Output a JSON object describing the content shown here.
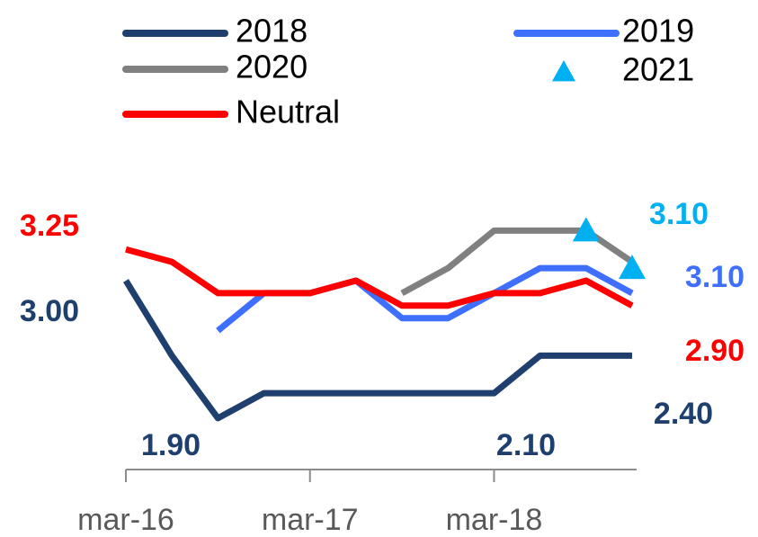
{
  "chart_data": {
    "type": "line",
    "categories": [
      "mar-16",
      null,
      null,
      null,
      "mar-17",
      null,
      null,
      null,
      "mar-18",
      null,
      null,
      null
    ],
    "ylim": [
      1.5,
      3.8
    ],
    "series": [
      {
        "name": "2018",
        "color": "#1f3f6e",
        "values": [
          3.0,
          2.4,
          1.9,
          2.1,
          2.1,
          2.1,
          2.1,
          2.1,
          2.1,
          2.4,
          2.4,
          2.4
        ]
      },
      {
        "name": "2019",
        "color": "#3f6fff",
        "values": [
          null,
          null,
          2.6,
          2.9,
          2.9,
          3.0,
          2.7,
          2.7,
          2.9,
          3.1,
          3.1,
          2.9
        ]
      },
      {
        "name": "2020",
        "color": "#808080",
        "values": [
          null,
          null,
          null,
          null,
          null,
          null,
          2.9,
          3.1,
          3.4,
          3.4,
          3.4,
          3.15
        ]
      },
      {
        "name": "2021",
        "color": "#00b0f0",
        "marker": "triangle",
        "values": [
          null,
          null,
          null,
          null,
          null,
          null,
          null,
          null,
          null,
          null,
          3.4,
          3.1
        ]
      },
      {
        "name": "Neutral",
        "color": "#ff0000",
        "values": [
          3.25,
          3.15,
          2.9,
          2.9,
          2.9,
          3.0,
          2.8,
          2.8,
          2.9,
          2.9,
          3.0,
          2.8
        ]
      }
    ],
    "annotations": [
      {
        "text": "3.25",
        "color": "#ff0000"
      },
      {
        "text": "3.00",
        "color": "#1f3f6e"
      },
      {
        "text": "1.90",
        "color": "#1f3f6e"
      },
      {
        "text": "2.10",
        "color": "#1f3f6e"
      },
      {
        "text": "2.40",
        "color": "#1f3f6e"
      },
      {
        "text": "2.90",
        "color": "#ff0000"
      },
      {
        "text": "3.10",
        "color": "#3f6fff"
      },
      {
        "text": "3.10",
        "color": "#00b0f0"
      }
    ]
  }
}
